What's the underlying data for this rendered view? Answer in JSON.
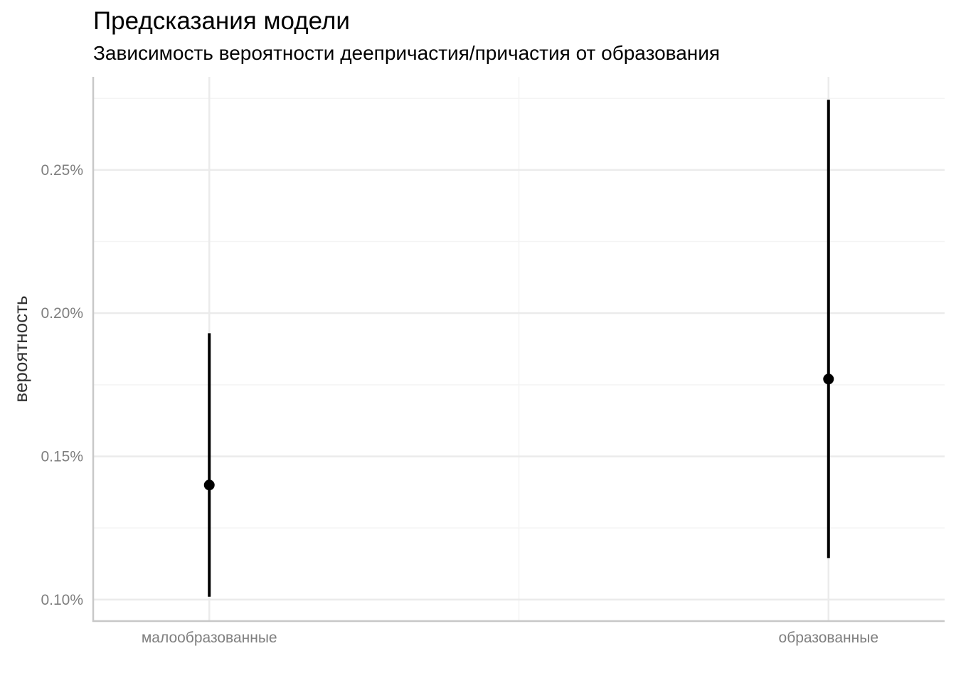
{
  "chart_data": {
    "type": "pointrange",
    "title": "Предсказания модели",
    "subtitle": "Зависимость вероятности деепричастия/причастия от образования",
    "xlabel": "",
    "ylabel": "вероятность",
    "categories": [
      "малообразованные",
      "образованные"
    ],
    "estimates": [
      0.0014,
      0.00177
    ],
    "lower": [
      0.00101,
      0.001145
    ],
    "upper": [
      0.00193,
      0.002745
    ],
    "ylim": [
      0.000925,
      0.002825
    ],
    "y_ticks": [
      0.001,
      0.0015,
      0.002,
      0.0025
    ],
    "y_tick_labels": [
      "0.10%",
      "0.15%",
      "0.20%",
      "0.25%"
    ],
    "grid": true,
    "colors": {
      "mark": "#000000",
      "grid_major": "#ebebeb",
      "grid_minor": "#f4f4f4",
      "axis_line": "#c8c8c8",
      "tick_text": "#7f7f7f"
    }
  }
}
